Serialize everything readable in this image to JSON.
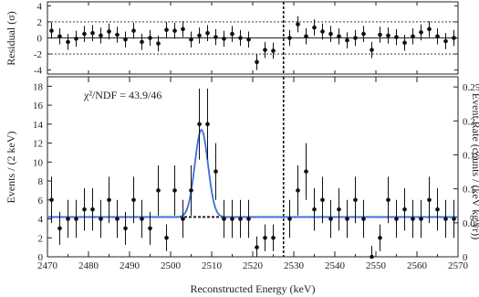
{
  "chart_data": [
    {
      "type": "scatter",
      "panel": "residual",
      "ylabel": "Residual (σ)",
      "xlim": [
        2470,
        2570
      ],
      "ylim": [
        -4.5,
        4.5
      ],
      "y_ticks": [
        -4,
        -2,
        0,
        2,
        4
      ],
      "reference_lines": [
        0,
        2,
        -2
      ],
      "grid": false,
      "series": [
        {
          "x": [
            2471,
            2473,
            2475,
            2477,
            2479,
            2481,
            2483,
            2485,
            2487,
            2489,
            2491,
            2493,
            2495,
            2497,
            2499,
            2501,
            2503,
            2505,
            2507,
            2509,
            2511,
            2513,
            2515,
            2517,
            2519,
            2521,
            2523,
            2525,
            2529,
            2531,
            2533,
            2535,
            2537,
            2539,
            2541,
            2543,
            2545,
            2547,
            2549,
            2551,
            2553,
            2555,
            2557,
            2559,
            2561,
            2563,
            2565,
            2567,
            2569
          ],
          "y": [
            0.9,
            0.2,
            -0.5,
            -0.1,
            0.5,
            0.6,
            0.3,
            0.8,
            0.4,
            -0.2,
            0.9,
            -0.5,
            0.0,
            -0.7,
            1.0,
            0.9,
            1.1,
            -0.2,
            0.3,
            0.6,
            0.1,
            -0.1,
            0.5,
            0.0,
            -0.2,
            -3.0,
            -1.5,
            -1.6,
            0.0,
            1.7,
            0.2,
            1.3,
            0.8,
            0.5,
            0.2,
            -0.3,
            0.0,
            0.5,
            -1.5,
            0.4,
            0.3,
            0.1,
            -0.6,
            0.2,
            0.7,
            1.1,
            0.2,
            -0.4,
            0.0
          ],
          "yerr": 1
        }
      ]
    },
    {
      "type": "scatter",
      "panel": "main",
      "title": "",
      "annotation": "χ²/NDF = 43.9/46",
      "xlabel": "Reconstructed Energy (keV)",
      "ylabel": "Events / (2 keV)",
      "y2label": "Event Rate (counts / (keV kg yr))",
      "xlim": [
        2470,
        2570
      ],
      "ylim": [
        0,
        19
      ],
      "y2lim": [
        0,
        0.265
      ],
      "x_ticks": [
        2470,
        2480,
        2490,
        2500,
        2510,
        2520,
        2530,
        2540,
        2550,
        2560,
        2570
      ],
      "y_ticks": [
        0,
        2,
        4,
        6,
        8,
        10,
        12,
        14,
        16,
        18
      ],
      "y2_ticks": [
        0,
        0.05,
        0.1,
        0.15,
        0.2,
        0.25
      ],
      "y2_tick_labels": [
        "0",
        "0.05",
        "0.1",
        "0.15",
        "0.2",
        "0.25"
      ],
      "vertical_line_x": 2527.5,
      "background_level": 4.2,
      "fit_peak": {
        "mean": 2507.5,
        "sigma": 1.6,
        "amplitude": 9.2,
        "color": "#3a6fd8"
      },
      "grid": false,
      "series": [
        {
          "x": [
            2471,
            2473,
            2475,
            2477,
            2479,
            2481,
            2483,
            2485,
            2487,
            2489,
            2491,
            2493,
            2495,
            2497,
            2499,
            2501,
            2503,
            2505,
            2507,
            2509,
            2511,
            2513,
            2515,
            2517,
            2519,
            2521,
            2523,
            2525,
            2529,
            2531,
            2533,
            2535,
            2537,
            2539,
            2541,
            2543,
            2545,
            2547,
            2549,
            2551,
            2553,
            2555,
            2557,
            2559,
            2561,
            2563,
            2565,
            2567,
            2569
          ],
          "y": [
            6,
            3,
            4,
            4,
            5,
            5,
            4,
            6,
            4,
            3,
            6,
            4,
            3,
            7,
            2,
            7,
            4,
            7,
            14,
            14,
            9,
            4,
            4,
            4,
            4,
            1,
            2,
            2,
            4,
            7,
            9,
            5,
            6,
            4,
            5,
            4,
            6,
            4,
            0,
            2,
            6,
            4,
            5,
            4,
            4,
            6,
            5,
            4,
            4
          ]
        }
      ]
    }
  ]
}
